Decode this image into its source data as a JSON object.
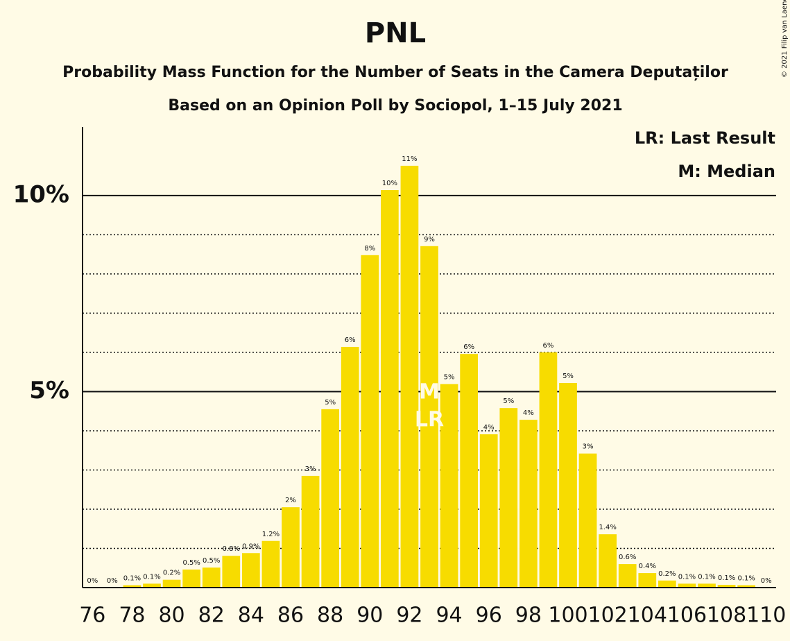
{
  "chart_data": {
    "type": "bar",
    "title": "PNL",
    "subtitle": [
      "Probability Mass Function for the Number of Seats in the Camera Deputaților",
      "Based on an Opinion Poll by Sociopol, 1–15 July 2021"
    ],
    "credit": "© 2021 Filip van Laenen",
    "legend": [
      "LR: Last Result",
      "M: Median"
    ],
    "annotations": [
      {
        "text": "M",
        "x": 93
      },
      {
        "text": "LR",
        "x": 93
      }
    ],
    "x": [
      76,
      77,
      78,
      79,
      80,
      81,
      82,
      83,
      84,
      85,
      86,
      87,
      88,
      89,
      90,
      91,
      92,
      93,
      94,
      95,
      96,
      97,
      98,
      99,
      100,
      101,
      102,
      103,
      104,
      105,
      106,
      107,
      108,
      109,
      110
    ],
    "values": [
      0,
      0,
      0.06,
      0.1,
      0.2,
      0.46,
      0.51,
      0.81,
      0.88,
      1.19,
      2.05,
      2.85,
      4.55,
      6.14,
      8.48,
      10.14,
      10.76,
      8.71,
      5.19,
      5.96,
      3.91,
      4.58,
      4.28,
      6.0,
      5.22,
      3.42,
      1.36,
      0.6,
      0.37,
      0.18,
      0.1,
      0.1,
      0.07,
      0.06,
      0
    ],
    "value_labels": [
      "0%",
      "0%",
      "0.1%",
      "0.1%",
      "0.2%",
      "0.5%",
      "0.5%",
      "0.8%",
      "0.9%",
      "1.2%",
      "2%",
      "3%",
      "5%",
      "6%",
      "8%",
      "10%",
      "11%",
      "9%",
      "5%",
      "6%",
      "4%",
      "5%",
      "4%",
      "6%",
      "5%",
      "3%",
      "1.4%",
      "0.6%",
      "0.4%",
      "0.2%",
      "0.1%",
      "0.1%",
      "0.1%",
      "0.1%",
      "0%"
    ],
    "color": "#f7dc00",
    "xlim": [
      75.5,
      110.5
    ],
    "xticks": [
      76,
      78,
      80,
      82,
      84,
      86,
      88,
      90,
      92,
      94,
      96,
      98,
      100,
      102,
      104,
      106,
      108,
      110
    ],
    "ylim": [
      0,
      11.75
    ],
    "yticks": [
      {
        "value": 5,
        "label": "5%"
      },
      {
        "value": 10,
        "label": "10%"
      }
    ],
    "minor_yticks": [
      1,
      2,
      3,
      4,
      6,
      7,
      8,
      9
    ],
    "grid": true
  }
}
